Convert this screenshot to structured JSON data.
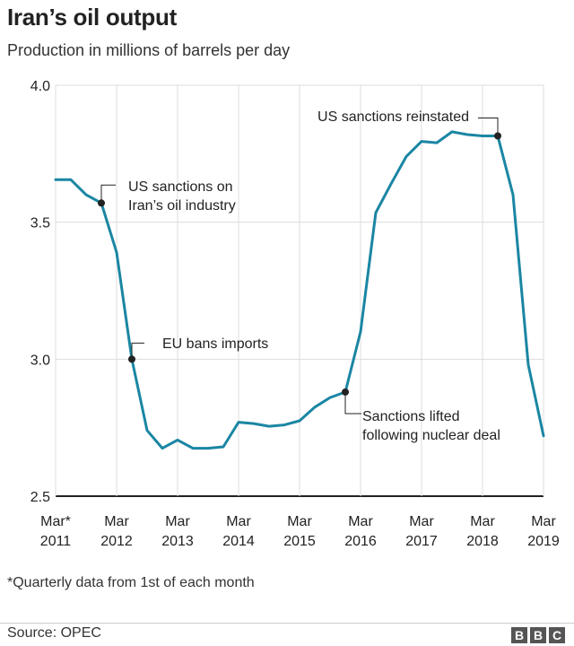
{
  "header": {
    "title": "Iran’s oil output",
    "subtitle": "Production in millions of barrels per day"
  },
  "footer": {
    "footnote": "*Quarterly data from 1st of each month",
    "source": "Source: OPEC",
    "logo": [
      "B",
      "B",
      "C"
    ]
  },
  "chart_data": {
    "type": "line",
    "title": "Iran’s oil output",
    "subtitle": "Production in millions of barrels per day",
    "ylim": [
      2.5,
      4.0
    ],
    "y_ticks": [
      2.5,
      3.0,
      3.5,
      4.0
    ],
    "y_tick_labels": [
      "2.5",
      "3.0",
      "3.5",
      "4.0"
    ],
    "x_tick_labels": [
      [
        "Mar*",
        "2011"
      ],
      [
        "Mar",
        "2012"
      ],
      [
        "Mar",
        "2013"
      ],
      [
        "Mar",
        "2014"
      ],
      [
        "Mar",
        "2015"
      ],
      [
        "Mar",
        "2016"
      ],
      [
        "Mar",
        "2017"
      ],
      [
        "Mar",
        "2018"
      ],
      [
        "Mar",
        "2019"
      ]
    ],
    "grid": true,
    "line_color": "#1a86a3",
    "series": [
      {
        "values": [
          3.655,
          3.655,
          3.6,
          3.57,
          3.39,
          3.0,
          2.74,
          2.675,
          2.705,
          2.675,
          2.675,
          2.68,
          2.77,
          2.765,
          2.755,
          2.76,
          2.775,
          2.825,
          2.86,
          2.88,
          3.1,
          3.535,
          3.64,
          3.74,
          3.795,
          3.79,
          3.83,
          3.82,
          3.815,
          3.815,
          3.6,
          2.98,
          2.72
        ]
      }
    ],
    "annotations": [
      {
        "index": 3,
        "lines": [
          "US sanctions on",
          "Iran’s oil industry"
        ]
      },
      {
        "index": 5,
        "lines": [
          "EU bans imports"
        ]
      },
      {
        "index": 19,
        "lines": [
          "Sanctions lifted",
          "following nuclear deal"
        ]
      },
      {
        "index": 29,
        "lines": [
          "US sanctions reinstated"
        ]
      }
    ]
  }
}
